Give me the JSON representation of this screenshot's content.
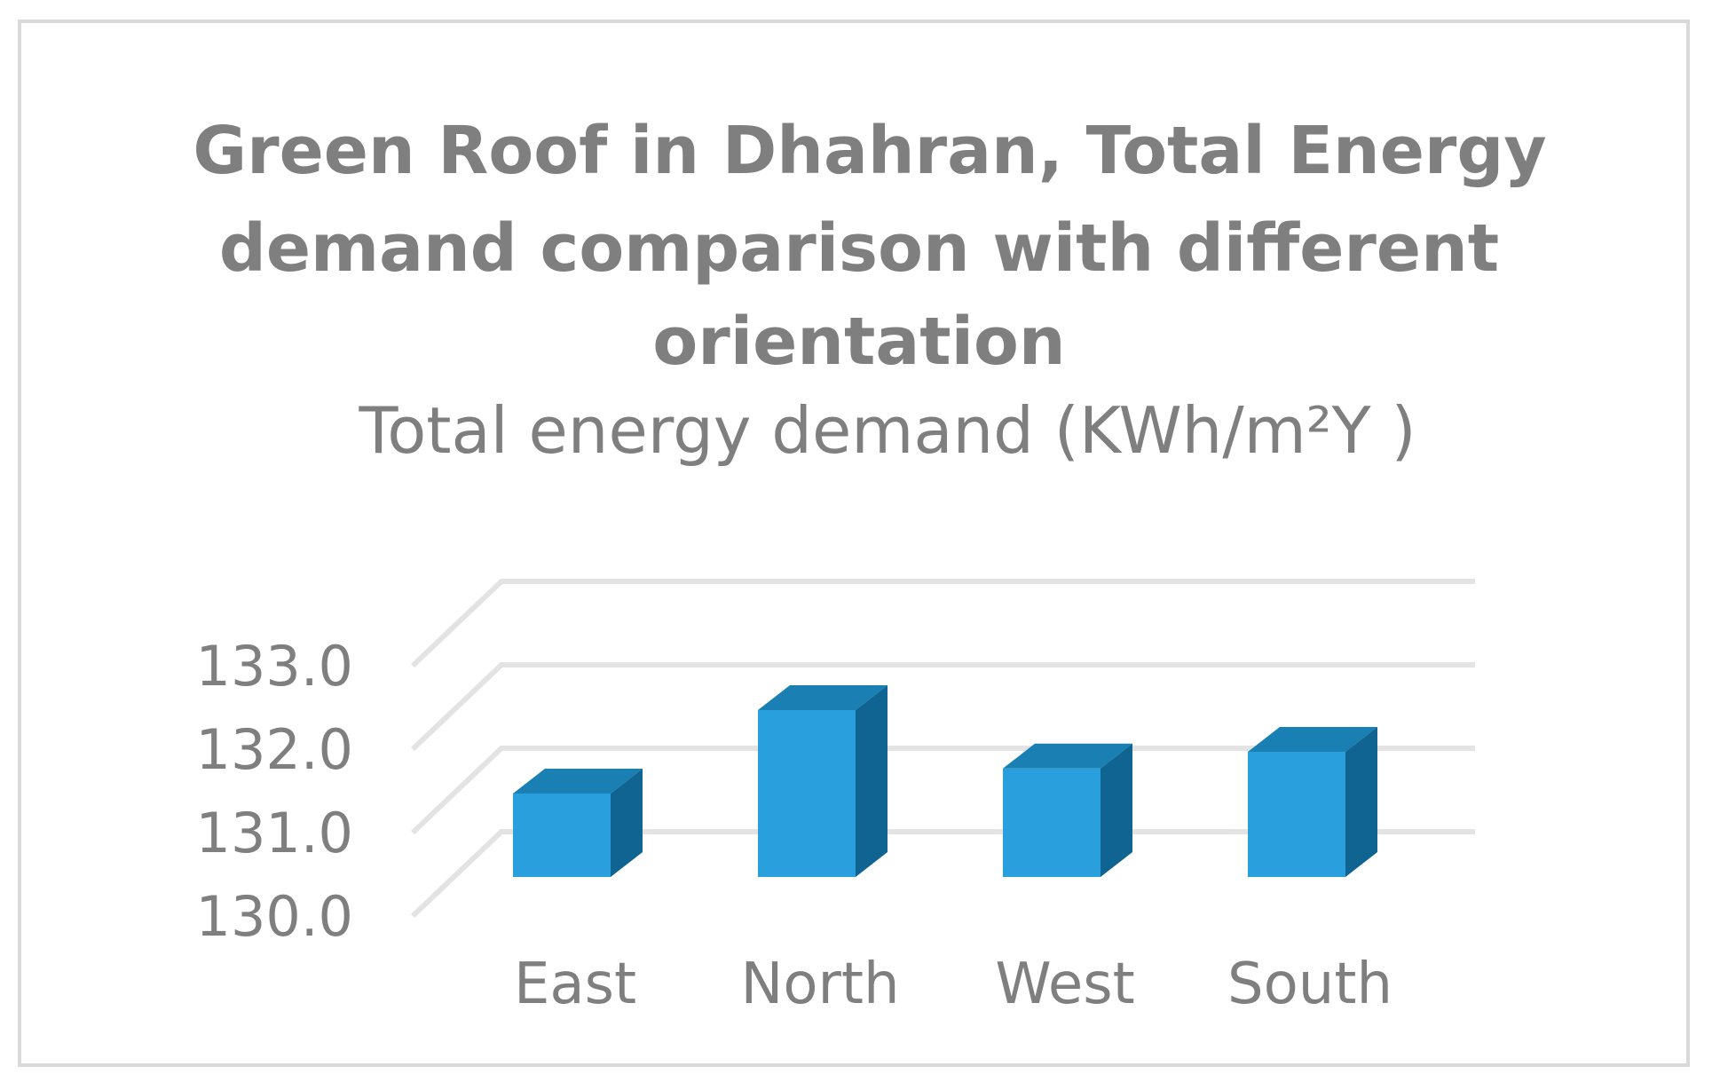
{
  "chart_data": {
    "type": "bar",
    "title_lines": [
      "Green Roof in Dhahran, Total Energy",
      "demand comparison with different",
      "orientation"
    ],
    "subtitle": "Total energy demand (KWh/m²Y )",
    "categories": [
      "East",
      "North",
      "West",
      "South"
    ],
    "values": [
      131.0,
      132.0,
      131.3,
      131.5
    ],
    "ylim": [
      130.0,
      133.0
    ],
    "yticks": [
      "130.0",
      "131.0",
      "132.0",
      "133.0"
    ],
    "grid": true,
    "style": "3d-column",
    "colors": {
      "front": "#2a9fdd",
      "top": "#1a7fb2",
      "side": "#0f6491",
      "text": "#7f7f7f",
      "grid": "#e3e3e3"
    }
  }
}
